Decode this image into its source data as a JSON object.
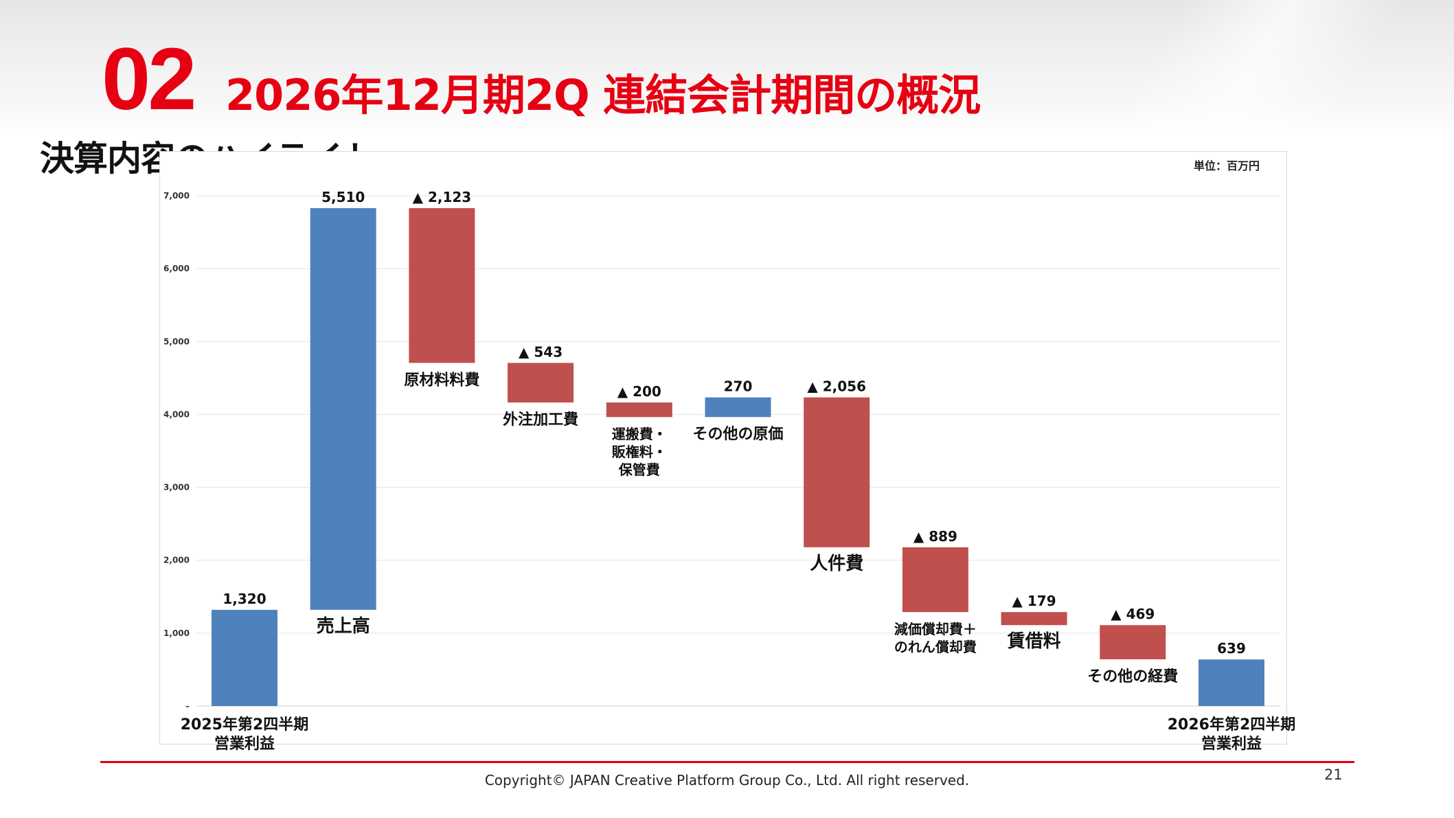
{
  "header": {
    "section_number": "02",
    "title": "2026年12月期2Q 連結会計期間の概況",
    "subtitle": "決算内容のハイライト",
    "unit_label": "単位：百万円"
  },
  "footer": {
    "copyright": "Copyright© JAPAN Creative Platform Group Co., Ltd. All right reserved.",
    "page_number": "21"
  },
  "colors": {
    "accent": "#e60012",
    "bar_positive": "#4f81bd",
    "bar_negative": "#c0504d",
    "grid": "#e4e4e4"
  },
  "chart_data": {
    "type": "bar",
    "subtype": "waterfall",
    "ylim": [
      0,
      7000
    ],
    "y_ticks": [
      {
        "value": 0,
        "label": "–"
      },
      {
        "value": 1000,
        "label": "1,000"
      },
      {
        "value": 2000,
        "label": "2,000"
      },
      {
        "value": 3000,
        "label": "3,000"
      },
      {
        "value": 4000,
        "label": "4,000"
      },
      {
        "value": 5000,
        "label": "5,000"
      },
      {
        "value": 6000,
        "label": "6,000"
      },
      {
        "value": 7000,
        "label": "7,000"
      }
    ],
    "grid": true,
    "bars": [
      {
        "category": [
          "2025年第2四半期",
          "営業利益"
        ],
        "start": 0,
        "end": 1320,
        "kind": "positive",
        "value_label": "1,320",
        "category_pos": "below-axis"
      },
      {
        "category": [
          "売上高"
        ],
        "start": 1320,
        "end": 6830,
        "kind": "positive",
        "value_label": "5,510",
        "category_pos": "below-bar"
      },
      {
        "category": [
          "原材料料費"
        ],
        "start": 4707,
        "end": 6830,
        "kind": "negative",
        "value_label": "▲ 2,123",
        "category_pos": "below-bar"
      },
      {
        "category": [
          "外注加工費"
        ],
        "start": 4164,
        "end": 4707,
        "kind": "negative",
        "value_label": "▲ 543",
        "category_pos": "below-bar"
      },
      {
        "category": [
          "運搬費・",
          "販権料・",
          "保管費"
        ],
        "start": 3964,
        "end": 4164,
        "kind": "negative",
        "value_label": "▲ 200",
        "category_pos": "below-bar"
      },
      {
        "category": [
          "その他の原価"
        ],
        "start": 3964,
        "end": 4234,
        "kind": "positive",
        "value_label": "270",
        "category_pos": "below-bar"
      },
      {
        "category": [
          "人件費"
        ],
        "start": 2178,
        "end": 4234,
        "kind": "negative",
        "value_label": "▲ 2,056",
        "category_pos": "below-bar"
      },
      {
        "category": [
          "減価償却費＋",
          "のれん償却費"
        ],
        "start": 1289,
        "end": 2178,
        "kind": "negative",
        "value_label": "▲ 889",
        "category_pos": "below-bar"
      },
      {
        "category": [
          "賃借料"
        ],
        "start": 1110,
        "end": 1289,
        "kind": "negative",
        "value_label": "▲ 179",
        "category_pos": "below-bar"
      },
      {
        "category": [
          "その他の経費"
        ],
        "start": 641,
        "end": 1110,
        "kind": "negative",
        "value_label": "▲ 469",
        "category_pos": "below-bar"
      },
      {
        "category": [
          "2026年第2四半期",
          "営業利益"
        ],
        "start": 0,
        "end": 639,
        "kind": "positive",
        "value_label": "639",
        "category_pos": "below-axis"
      }
    ]
  }
}
